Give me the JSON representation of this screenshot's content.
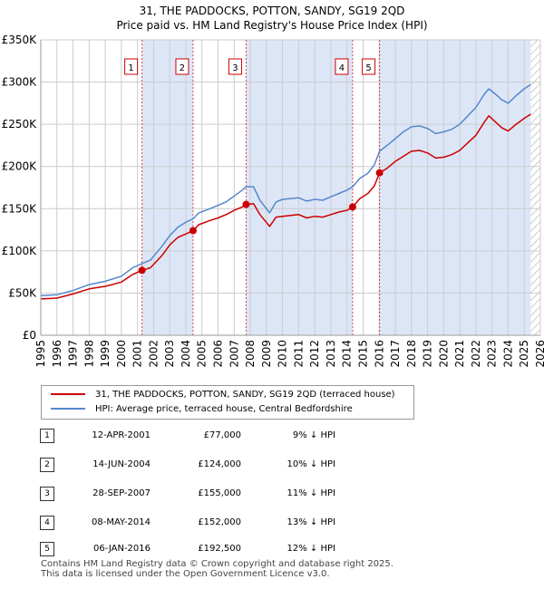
{
  "title_line1": "31, THE PADDOCKS, POTTON, SANDY, SG19 2QD",
  "title_line2": "Price paid vs. HM Land Registry's House Price Index (HPI)",
  "colors": {
    "price_paid": "#cc0000",
    "hpi": "#5588cc",
    "shade": "#dde6f7",
    "grid": "#cccccc"
  },
  "chart_data": {
    "type": "line",
    "xlabel": "",
    "ylabel": "",
    "xlim": [
      1995,
      2026
    ],
    "ylim": [
      0,
      350000
    ],
    "y_ticks": [
      0,
      50000,
      100000,
      150000,
      200000,
      250000,
      300000,
      350000
    ],
    "y_tick_labels": [
      "£0",
      "£50K",
      "£100K",
      "£150K",
      "£200K",
      "£250K",
      "£300K",
      "£350K"
    ],
    "x_ticks": [
      1995,
      1996,
      1997,
      1998,
      1999,
      2000,
      2001,
      2002,
      2003,
      2004,
      2005,
      2006,
      2007,
      2008,
      2009,
      2010,
      2011,
      2012,
      2013,
      2014,
      2015,
      2016,
      2017,
      2018,
      2019,
      2020,
      2021,
      2022,
      2023,
      2024,
      2025,
      2026
    ],
    "x_tick_labels": [
      "1995",
      "1996",
      "1997",
      "1998",
      "1999",
      "2000",
      "2001",
      "2002",
      "2003",
      "2004",
      "2005",
      "2006",
      "2007",
      "2008",
      "2009",
      "2010",
      "2011",
      "2012",
      "2013",
      "2014",
      "2015",
      "2016",
      "2017",
      "2018",
      "2019",
      "2020",
      "2021",
      "2022",
      "2023",
      "2024",
      "2025",
      "2026"
    ],
    "shaded_ranges": [
      [
        2001.28,
        2004.45
      ],
      [
        2007.74,
        2014.35
      ],
      [
        2016.02,
        2025.4
      ]
    ],
    "hatched_from": 2025.4,
    "series": [
      {
        "name": "31, THE PADDOCKS, POTTON, SANDY, SG19 2QD (terraced house)",
        "color": "#cc0000",
        "x": [
          1995,
          1996,
          1997,
          1998,
          1999,
          2000,
          2000.7,
          2001.28,
          2001.8,
          2002.5,
          2003,
          2003.5,
          2004.0,
          2004.45,
          2004.8,
          2005.5,
          2006,
          2006.5,
          2007,
          2007.5,
          2007.74,
          2008.2,
          2008.6,
          2009.2,
          2009.6,
          2010,
          2010.5,
          2011,
          2011.5,
          2012,
          2012.5,
          2013,
          2013.5,
          2014.0,
          2014.35,
          2014.8,
          2015.3,
          2015.7,
          2016.02,
          2016.5,
          2017,
          2017.5,
          2018,
          2018.5,
          2019,
          2019.5,
          2020,
          2020.5,
          2021,
          2021.5,
          2022,
          2022.5,
          2022.8,
          2023.2,
          2023.6,
          2024,
          2024.5,
          2025,
          2025.4
        ],
        "values": [
          43000,
          44000,
          49000,
          55000,
          58000,
          63000,
          72000,
          77000,
          80000,
          94000,
          107000,
          116000,
          120000,
          124000,
          131000,
          136000,
          139000,
          143000,
          148000,
          152000,
          155000,
          156000,
          143000,
          129000,
          140000,
          141000,
          142000,
          143000,
          139000,
          141000,
          140000,
          143000,
          146000,
          148000,
          152000,
          162000,
          168000,
          177000,
          192500,
          198000,
          206000,
          212000,
          218000,
          219000,
          216000,
          210000,
          211000,
          214000,
          219000,
          228000,
          237000,
          252000,
          260000,
          253000,
          246000,
          242000,
          250000,
          257000,
          262000
        ]
      },
      {
        "name": "HPI: Average price, terraced house, Central Bedfordshire",
        "color": "#5588cc",
        "x": [
          1995,
          1996,
          1997,
          1998,
          1999,
          2000,
          2000.7,
          2001.28,
          2001.8,
          2002.5,
          2003,
          2003.5,
          2004.0,
          2004.45,
          2004.8,
          2005.5,
          2006,
          2006.5,
          2007,
          2007.5,
          2007.74,
          2008.2,
          2008.6,
          2009.2,
          2009.6,
          2010,
          2010.5,
          2011,
          2011.5,
          2012,
          2012.5,
          2013,
          2013.5,
          2014.0,
          2014.35,
          2014.8,
          2015.3,
          2015.7,
          2016.02,
          2016.5,
          2017,
          2017.5,
          2018,
          2018.5,
          2019,
          2019.5,
          2020,
          2020.5,
          2021,
          2021.5,
          2022,
          2022.5,
          2022.8,
          2023.2,
          2023.6,
          2024,
          2024.5,
          2025,
          2025.4
        ],
        "values": [
          47000,
          48000,
          53000,
          60000,
          64000,
          70000,
          80000,
          85000,
          89000,
          105000,
          118000,
          128000,
          134000,
          138000,
          145000,
          150000,
          154000,
          158000,
          165000,
          172000,
          176000,
          176000,
          160000,
          145000,
          158000,
          161000,
          162000,
          163000,
          159000,
          161000,
          160000,
          164000,
          168000,
          172000,
          176000,
          186000,
          192000,
          202000,
          218000,
          225000,
          233000,
          241000,
          247000,
          248000,
          245000,
          239000,
          241000,
          244000,
          250000,
          260000,
          270000,
          285000,
          292000,
          286000,
          279000,
          275000,
          284000,
          292000,
          297000
        ]
      }
    ],
    "sale_markers": [
      {
        "label": "1",
        "x": 2001.28,
        "y": 77000
      },
      {
        "label": "2",
        "x": 2004.45,
        "y": 124000
      },
      {
        "label": "3",
        "x": 2007.74,
        "y": 155000
      },
      {
        "label": "4",
        "x": 2014.35,
        "y": 152000
      },
      {
        "label": "5",
        "x": 2016.02,
        "y": 192500
      }
    ]
  },
  "legend": {
    "price_paid": "31, THE PADDOCKS, POTTON, SANDY, SG19 2QD (terraced house)",
    "hpi": "HPI: Average price, terraced house, Central Bedfordshire"
  },
  "sales": [
    {
      "num": "1",
      "date": "12-APR-2001",
      "price": "£77,000",
      "hpi": "9% ↓ HPI"
    },
    {
      "num": "2",
      "date": "14-JUN-2004",
      "price": "£124,000",
      "hpi": "10% ↓ HPI"
    },
    {
      "num": "3",
      "date": "28-SEP-2007",
      "price": "£155,000",
      "hpi": "11% ↓ HPI"
    },
    {
      "num": "4",
      "date": "08-MAY-2014",
      "price": "£152,000",
      "hpi": "13% ↓ HPI"
    },
    {
      "num": "5",
      "date": "06-JAN-2016",
      "price": "£192,500",
      "hpi": "12% ↓ HPI"
    }
  ],
  "footer": {
    "line1": "Contains HM Land Registry data © Crown copyright and database right 2025.",
    "line2": "This data is licensed under the Open Government Licence v3.0."
  }
}
